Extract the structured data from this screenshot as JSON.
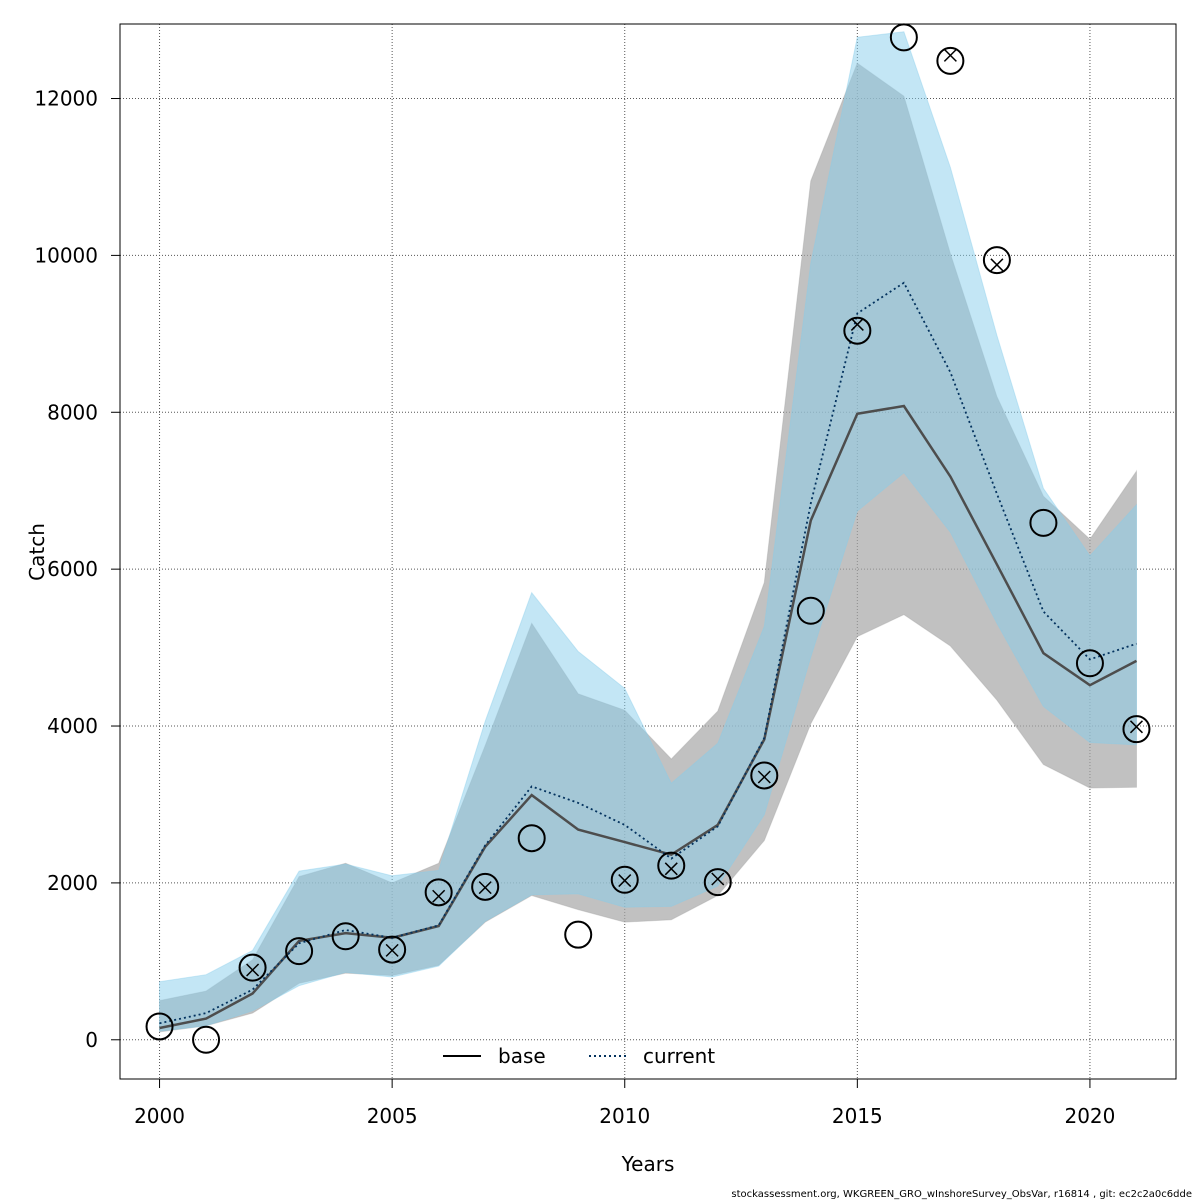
{
  "chart_data": {
    "type": "line",
    "xlabel": "Years",
    "ylabel": "Catch",
    "xlim": [
      1999.15,
      2021.85
    ],
    "ylim": [
      -500,
      12950
    ],
    "x_ticks": [
      2000,
      2005,
      2010,
      2015,
      2020
    ],
    "y_ticks": [
      0,
      2000,
      4000,
      6000,
      8000,
      10000,
      12000
    ],
    "x_tick_labels": [
      "2000",
      "2005",
      "2010",
      "2015",
      "2020"
    ],
    "y_tick_labels": [
      "0",
      "2000",
      "4000",
      "6000",
      "8000",
      "10000",
      "12000"
    ],
    "grid": true,
    "legend_position": "bottom",
    "x": [
      2000,
      2001,
      2002,
      2003,
      2004,
      2005,
      2006,
      2007,
      2008,
      2009,
      2010,
      2011,
      2012,
      2013,
      2014,
      2015,
      2016,
      2017,
      2018,
      2019,
      2020,
      2021
    ],
    "series": [
      {
        "name": "base",
        "style": "solid",
        "color": "#4d4d4d",
        "band_color": "#a6a6a6",
        "values": [
          150,
          270,
          590,
          1260,
          1360,
          1300,
          1450,
          2460,
          3120,
          2680,
          2520,
          2360,
          2740,
          3830,
          6620,
          7980,
          8080,
          7180,
          6060,
          4930,
          4520,
          4830
        ],
        "lower": [
          100,
          180,
          340,
          720,
          850,
          820,
          950,
          1500,
          1840,
          1660,
          1500,
          1530,
          1840,
          2540,
          4030,
          5140,
          5420,
          5020,
          4330,
          3510,
          3210,
          3220
        ],
        "upper": [
          500,
          620,
          1020,
          2080,
          2250,
          2000,
          2250,
          3750,
          5310,
          4410,
          4200,
          3580,
          4190,
          5830,
          10950,
          12450,
          12030,
          10020,
          8200,
          6930,
          6380,
          7250
        ]
      },
      {
        "name": "current",
        "style": "dotted",
        "color": "#03325e",
        "band_color": "#87ceeb",
        "values": [
          210,
          340,
          640,
          1230,
          1400,
          1300,
          1460,
          2480,
          3230,
          3020,
          2740,
          2310,
          2720,
          3850,
          6840,
          9260,
          9650,
          8510,
          6960,
          5460,
          4850,
          5050
        ],
        "lower": [
          110,
          180,
          370,
          690,
          860,
          800,
          940,
          1510,
          1850,
          1860,
          1690,
          1700,
          1960,
          2870,
          4880,
          6740,
          7230,
          6470,
          5310,
          4250,
          3790,
          3760
        ],
        "upper": [
          740,
          830,
          1140,
          2150,
          2240,
          2090,
          2160,
          4060,
          5700,
          4950,
          4480,
          3270,
          3780,
          5270,
          9900,
          12780,
          12850,
          11120,
          8980,
          7030,
          6170,
          6820
        ]
      }
    ],
    "observations": [
      {
        "x": 2000,
        "y": 170,
        "cross": false
      },
      {
        "x": 2001,
        "y": 0,
        "cross": false
      },
      {
        "x": 2002,
        "y": 920,
        "cross": true
      },
      {
        "x": 2003,
        "y": 1130,
        "cross": false
      },
      {
        "x": 2004,
        "y": 1320,
        "cross": false
      },
      {
        "x": 2005,
        "y": 1150,
        "cross": true
      },
      {
        "x": 2006,
        "y": 1880,
        "cross": true
      },
      {
        "x": 2007,
        "y": 1950,
        "cross": true
      },
      {
        "x": 2008,
        "y": 2570,
        "cross": false
      },
      {
        "x": 2009,
        "y": 1340,
        "cross": false
      },
      {
        "x": 2010,
        "y": 2040,
        "cross": true
      },
      {
        "x": 2011,
        "y": 2220,
        "cross": true
      },
      {
        "x": 2012,
        "y": 2010,
        "cross": true
      },
      {
        "x": 2013,
        "y": 3370,
        "cross": true
      },
      {
        "x": 2014,
        "y": 5470,
        "cross": false
      },
      {
        "x": 2015,
        "y": 9040,
        "cross": true
      },
      {
        "x": 2016,
        "y": 12780,
        "cross": false
      },
      {
        "x": 2017,
        "y": 12480,
        "cross": true
      },
      {
        "x": 2018,
        "y": 9940,
        "cross": true
      },
      {
        "x": 2019,
        "y": 6590,
        "cross": false
      },
      {
        "x": 2020,
        "y": 4800,
        "cross": false
      },
      {
        "x": 2021,
        "y": 3960,
        "cross": true
      }
    ],
    "obs_cross_values": [
      180,
      0,
      890,
      1200,
      1320,
      1140,
      1830,
      1940,
      2550,
      1340,
      2030,
      2180,
      2050,
      3350,
      5460,
      9120,
      12800,
      12550,
      9880,
      6570,
      4790,
      3990
    ]
  },
  "legend": {
    "base_label": "base",
    "current_label": "current"
  },
  "footer": "stockassessment.org, WKGREEN_GRO_wInshoreSurvey_ObsVar, r16814 , git: ec2c2a0c6dde"
}
